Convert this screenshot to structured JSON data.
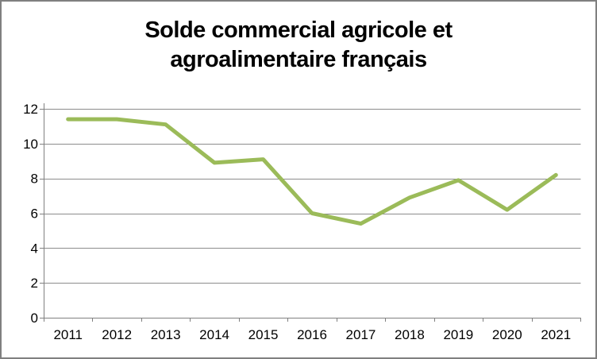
{
  "window": {
    "background": "#FFFFFF",
    "border_color": "#808080"
  },
  "chart_data": {
    "type": "line",
    "title": "Solde commercial agricole et agroalimentaire français",
    "title_line1": "Solde commercial agricole et",
    "title_line2": "agroalimentaire français",
    "categories": [
      "2011",
      "2012",
      "2013",
      "2014",
      "2015",
      "2016",
      "2017",
      "2018",
      "2019",
      "2020",
      "2021"
    ],
    "values": [
      11.4,
      11.4,
      11.1,
      8.9,
      9.1,
      6.0,
      5.4,
      6.9,
      7.9,
      6.2,
      8.2
    ],
    "xlabel": "",
    "ylabel": "",
    "ylim": [
      0,
      12
    ],
    "yticks": [
      0,
      2,
      4,
      6,
      8,
      10,
      12
    ],
    "grid": true,
    "legend": false,
    "colors": {
      "line": "#9BBB59",
      "gridline": "#8C8C8C",
      "axis": "#808080",
      "tick_text": "#000000",
      "title_text": "#000000"
    }
  }
}
